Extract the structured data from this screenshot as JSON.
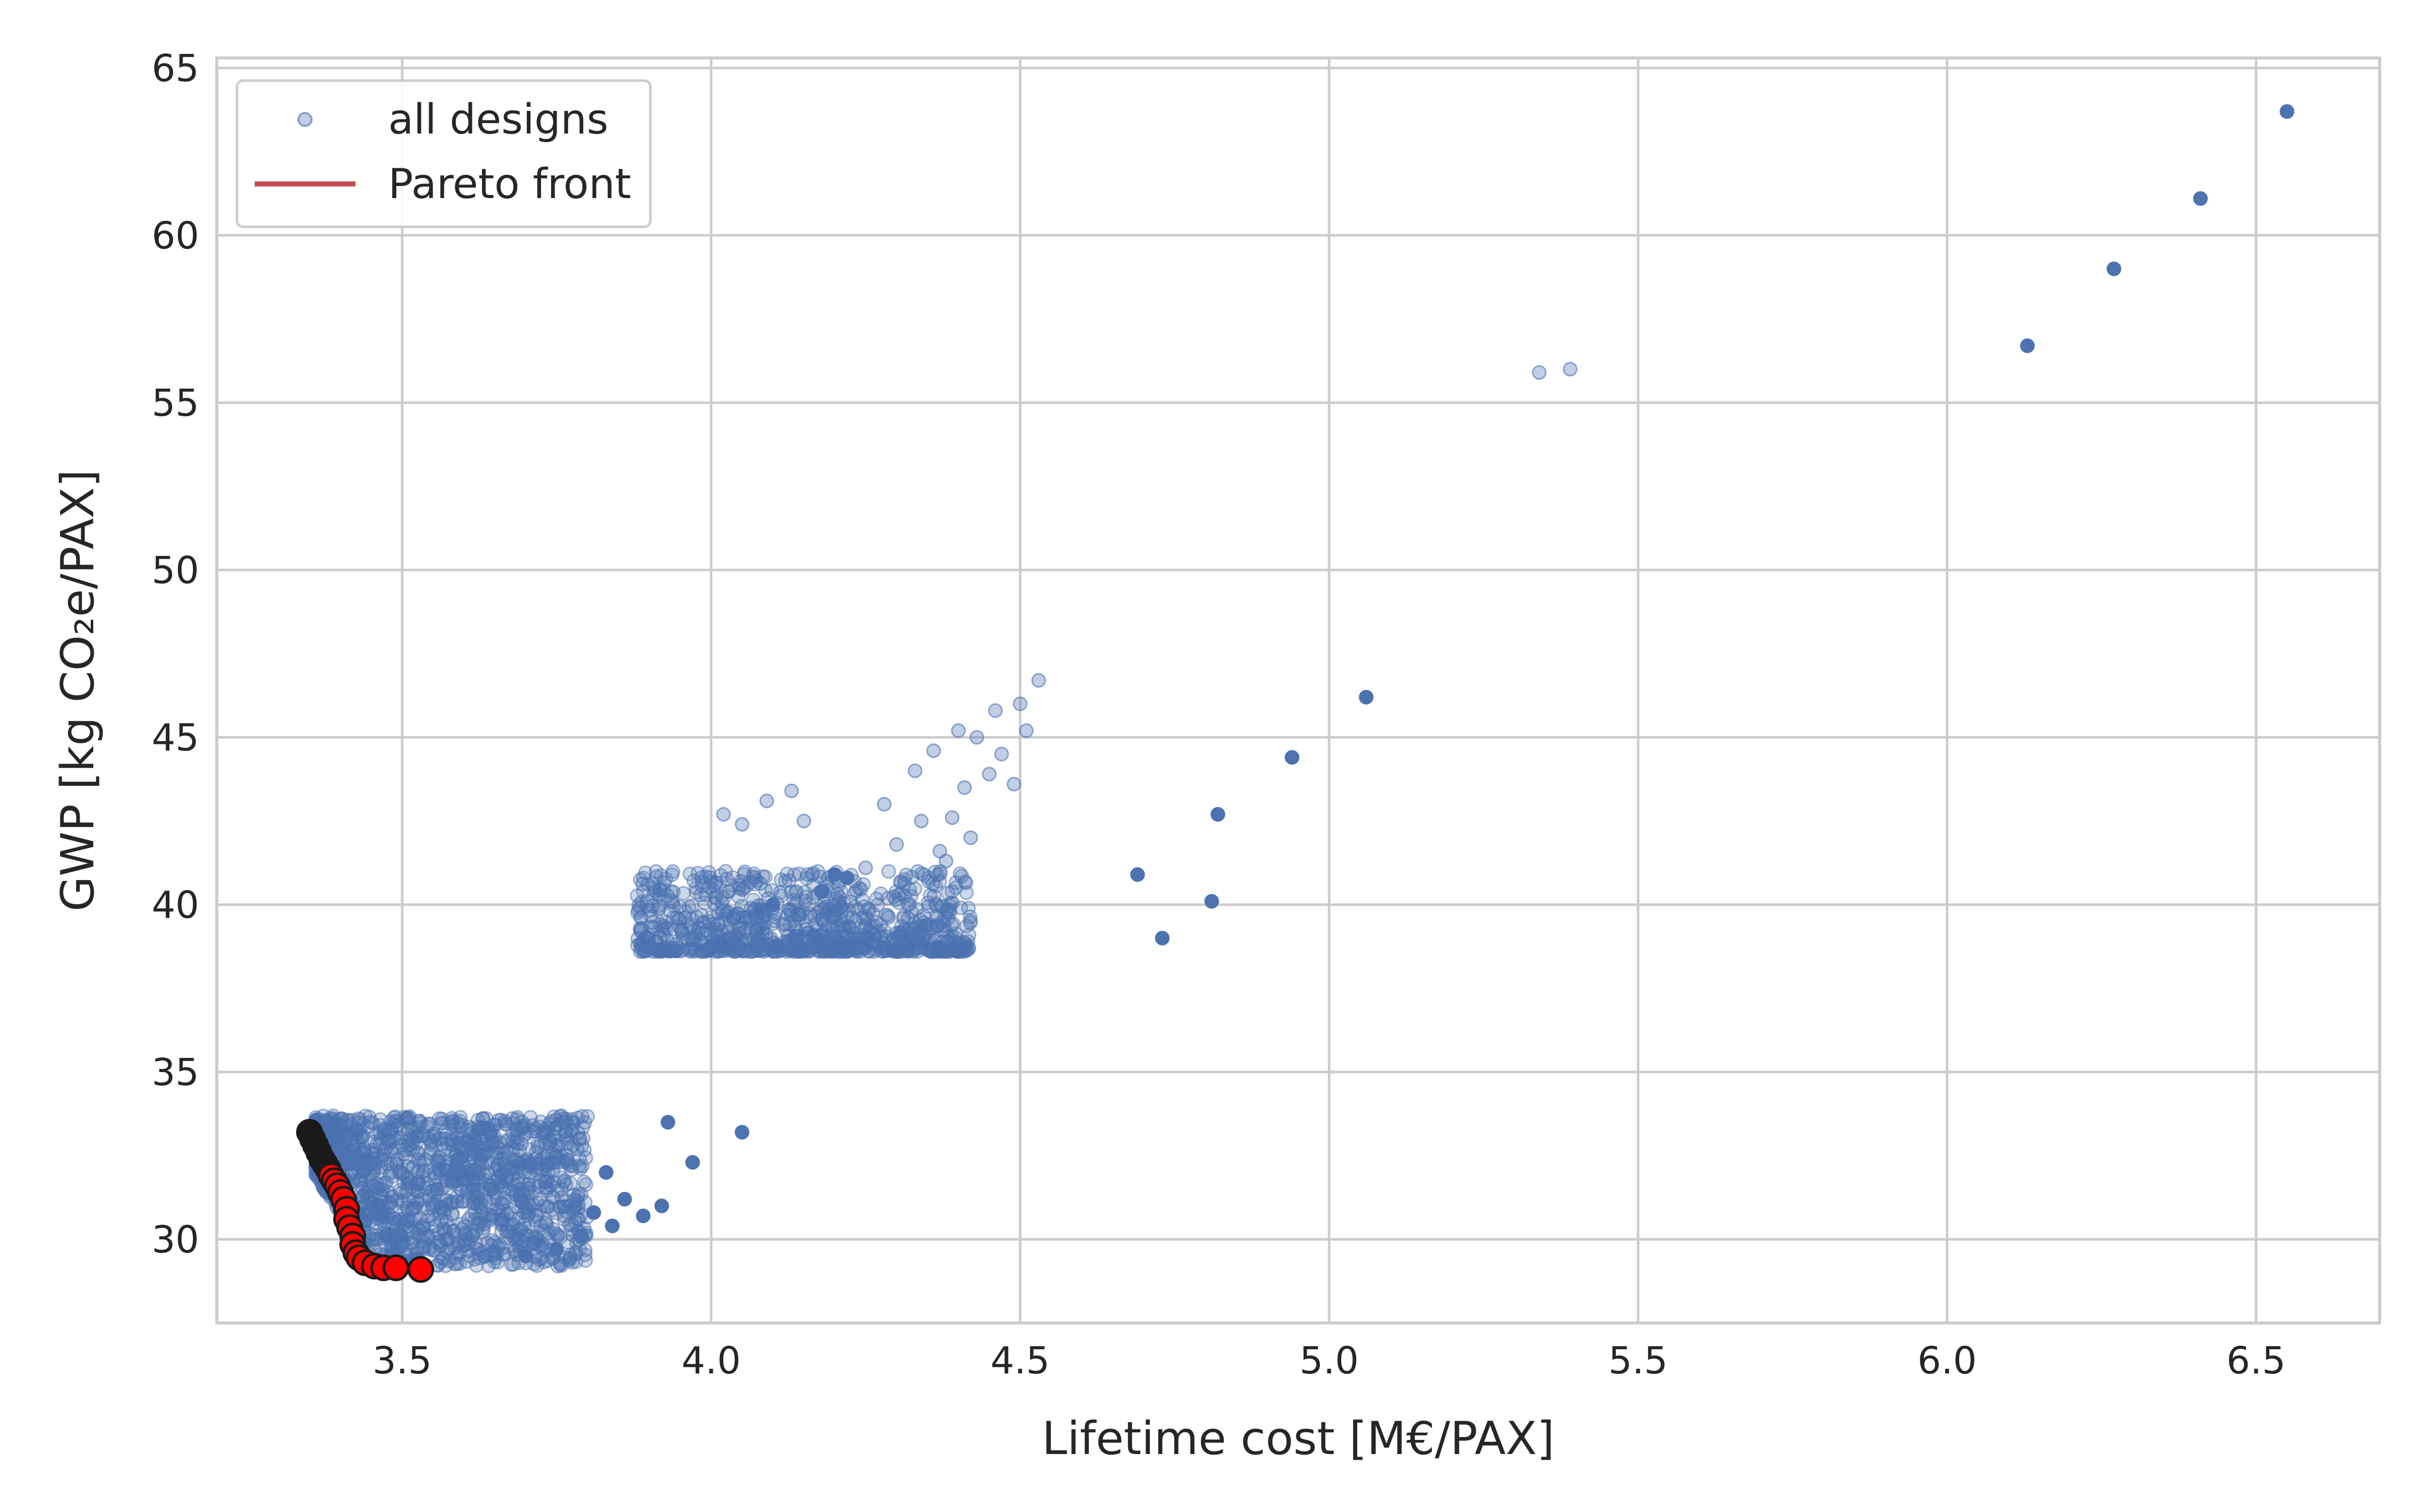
{
  "chart_data": {
    "type": "scatter",
    "xlabel": "Lifetime cost [M€/PAX]",
    "ylabel": "GWP [kg CO₂e/PAX]",
    "xlim": [
      3.2,
      6.7
    ],
    "ylim": [
      27.5,
      65.3
    ],
    "xticks": [
      "3.5",
      "4.0",
      "4.5",
      "5.0",
      "5.5",
      "6.0",
      "6.5"
    ],
    "yticks": [
      "30",
      "35",
      "40",
      "45",
      "50",
      "55",
      "60",
      "65"
    ],
    "grid": true,
    "legend": {
      "placement": "top-left",
      "entries": [
        {
          "label": "all designs",
          "marker": "circle",
          "color": "#4c72b0"
        },
        {
          "label": "Pareto front",
          "marker": "line",
          "color": "#c44e52"
        }
      ]
    },
    "colors": {
      "designs": "#4c72b0",
      "pareto_fill": "#ff0000",
      "pareto_edge": "#1a1a1a",
      "frontier_black": "#1a1a1a"
    },
    "series": [
      {
        "name": "all designs",
        "cluster_summary": [
          {
            "x_range": [
              3.36,
              3.8
            ],
            "y_range": [
              29.2,
              33.7
            ],
            "approx_count": "dense"
          },
          {
            "x_range": [
              3.88,
              4.42
            ],
            "y_range": [
              38.6,
              41.0
            ],
            "approx_count": "dense"
          }
        ],
        "points": [
          {
            "x": 3.93,
            "y": 33.5
          },
          {
            "x": 4.05,
            "y": 33.2
          },
          {
            "x": 3.97,
            "y": 32.3
          },
          {
            "x": 3.83,
            "y": 32.0
          },
          {
            "x": 3.86,
            "y": 31.2
          },
          {
            "x": 3.92,
            "y": 31.0
          },
          {
            "x": 3.81,
            "y": 30.8
          },
          {
            "x": 3.89,
            "y": 30.7
          },
          {
            "x": 3.84,
            "y": 30.4
          },
          {
            "x": 3.79,
            "y": 30.1
          },
          {
            "x": 3.75,
            "y": 29.7
          },
          {
            "x": 3.7,
            "y": 29.5
          },
          {
            "x": 4.43,
            "y": 45.0
          },
          {
            "x": 4.5,
            "y": 46.0
          },
          {
            "x": 4.53,
            "y": 46.7
          },
          {
            "x": 4.47,
            "y": 44.5
          },
          {
            "x": 4.41,
            "y": 43.5
          },
          {
            "x": 4.39,
            "y": 42.6
          },
          {
            "x": 4.34,
            "y": 42.5
          },
          {
            "x": 4.3,
            "y": 41.8
          },
          {
            "x": 4.25,
            "y": 41.1
          },
          {
            "x": 4.18,
            "y": 40.4
          },
          {
            "x": 4.1,
            "y": 40.0
          },
          {
            "x": 4.22,
            "y": 40.8
          },
          {
            "x": 4.37,
            "y": 41.6
          },
          {
            "x": 4.45,
            "y": 43.9
          },
          {
            "x": 4.02,
            "y": 42.7
          },
          {
            "x": 4.05,
            "y": 42.4
          },
          {
            "x": 4.09,
            "y": 43.1
          },
          {
            "x": 4.13,
            "y": 43.4
          },
          {
            "x": 4.15,
            "y": 42.5
          },
          {
            "x": 4.2,
            "y": 40.9
          },
          {
            "x": 4.28,
            "y": 43.0
          },
          {
            "x": 4.33,
            "y": 44.0
          },
          {
            "x": 4.36,
            "y": 44.6
          },
          {
            "x": 4.4,
            "y": 45.2
          },
          {
            "x": 4.46,
            "y": 45.8
          },
          {
            "x": 4.49,
            "y": 43.6
          },
          {
            "x": 4.51,
            "y": 45.2
          },
          {
            "x": 4.42,
            "y": 42.0
          },
          {
            "x": 4.38,
            "y": 41.3
          },
          {
            "x": 4.69,
            "y": 40.9
          },
          {
            "x": 4.73,
            "y": 39.0
          },
          {
            "x": 4.82,
            "y": 42.7
          },
          {
            "x": 4.81,
            "y": 40.1
          },
          {
            "x": 4.94,
            "y": 44.4
          },
          {
            "x": 5.06,
            "y": 46.2
          },
          {
            "x": 5.34,
            "y": 55.9
          },
          {
            "x": 5.39,
            "y": 56.0
          },
          {
            "x": 6.13,
            "y": 56.7
          },
          {
            "x": 6.27,
            "y": 59.0
          },
          {
            "x": 6.41,
            "y": 61.1
          },
          {
            "x": 6.55,
            "y": 63.7
          }
        ]
      },
      {
        "name": "Pareto front",
        "points": [
          {
            "x": 3.35,
            "y": 33.2
          },
          {
            "x": 3.355,
            "y": 33.0
          },
          {
            "x": 3.36,
            "y": 32.8
          },
          {
            "x": 3.365,
            "y": 32.6
          },
          {
            "x": 3.37,
            "y": 32.4
          },
          {
            "x": 3.375,
            "y": 32.25
          },
          {
            "x": 3.38,
            "y": 32.1
          },
          {
            "x": 3.385,
            "y": 31.9
          },
          {
            "x": 3.39,
            "y": 31.75
          },
          {
            "x": 3.395,
            "y": 31.6
          },
          {
            "x": 3.4,
            "y": 31.4
          },
          {
            "x": 3.405,
            "y": 31.2
          },
          {
            "x": 3.41,
            "y": 30.9
          },
          {
            "x": 3.41,
            "y": 30.6
          },
          {
            "x": 3.415,
            "y": 30.35
          },
          {
            "x": 3.42,
            "y": 30.1
          },
          {
            "x": 3.42,
            "y": 29.85
          },
          {
            "x": 3.425,
            "y": 29.6
          },
          {
            "x": 3.43,
            "y": 29.45
          },
          {
            "x": 3.44,
            "y": 29.3
          },
          {
            "x": 3.455,
            "y": 29.2
          },
          {
            "x": 3.47,
            "y": 29.15
          },
          {
            "x": 3.49,
            "y": 29.15
          },
          {
            "x": 3.53,
            "y": 29.1
          }
        ]
      }
    ]
  }
}
